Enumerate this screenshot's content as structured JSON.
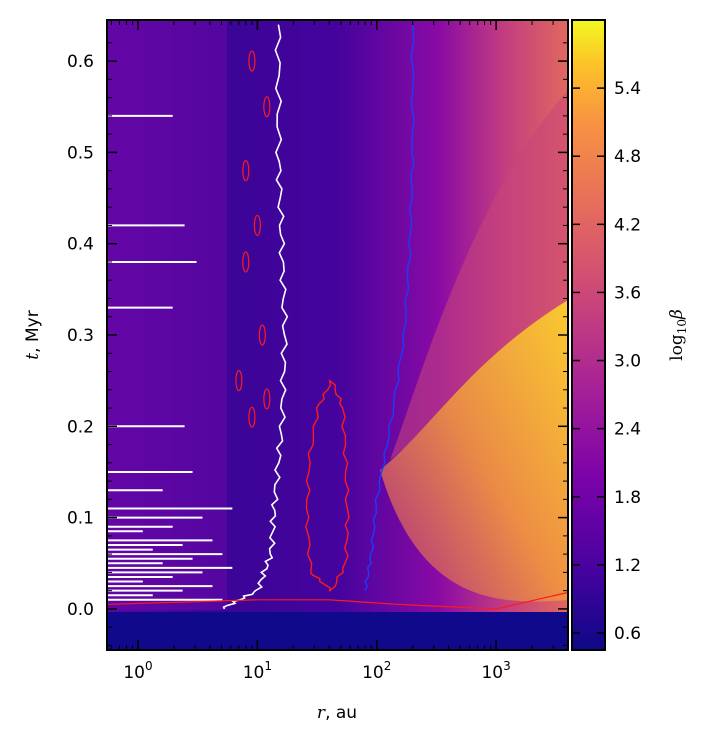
{
  "chart_data": {
    "type": "heatmap",
    "title": "",
    "xlabel_var": "r",
    "xlabel_unit": ", au",
    "ylabel_var": "t",
    "ylabel_unit": ", Myr",
    "x_scale": "log",
    "xlim": [
      0.55,
      4000
    ],
    "ylim": [
      -0.045,
      0.645
    ],
    "x_ticks": [
      {
        "value": 1,
        "base": "10",
        "exp": "0"
      },
      {
        "value": 10,
        "base": "10",
        "exp": "1"
      },
      {
        "value": 100,
        "base": "10",
        "exp": "2"
      },
      {
        "value": 1000,
        "base": "10",
        "exp": "3"
      }
    ],
    "y_ticks": [
      {
        "value": 0.0,
        "label": "0.0"
      },
      {
        "value": 0.1,
        "label": "0.1"
      },
      {
        "value": 0.2,
        "label": "0.2"
      },
      {
        "value": 0.3,
        "label": "0.3"
      },
      {
        "value": 0.4,
        "label": "0.4"
      },
      {
        "value": 0.5,
        "label": "0.5"
      },
      {
        "value": 0.6,
        "label": "0.6"
      }
    ],
    "colorbar": {
      "label_base": "log",
      "label_sub": "10",
      "label_var": "β",
      "range": [
        0.45,
        6.0
      ],
      "ticks": [
        {
          "value": 0.6,
          "label": "0.6"
        },
        {
          "value": 1.2,
          "label": "1.2"
        },
        {
          "value": 1.8,
          "label": "1.8"
        },
        {
          "value": 2.4,
          "label": "2.4"
        },
        {
          "value": 3.0,
          "label": "3.0"
        },
        {
          "value": 3.6,
          "label": "3.6"
        },
        {
          "value": 4.2,
          "label": "4.2"
        },
        {
          "value": 4.8,
          "label": "4.8"
        },
        {
          "value": 5.4,
          "label": "5.4"
        }
      ],
      "colormap": "plasma"
    },
    "contours": {
      "white_boundary": [
        [
          15,
          0.64
        ],
        [
          15,
          0.5
        ],
        [
          16,
          0.4
        ],
        [
          17,
          0.3
        ],
        [
          16,
          0.2
        ],
        [
          14,
          0.12
        ],
        [
          13,
          0.06
        ],
        [
          10,
          0.02
        ],
        [
          5,
          0.0
        ]
      ],
      "red_lobe": [
        [
          28,
          0.04
        ],
        [
          26,
          0.1
        ],
        [
          27,
          0.16
        ],
        [
          32,
          0.22
        ],
        [
          42,
          0.25
        ],
        [
          52,
          0.22
        ],
        [
          55,
          0.16
        ],
        [
          57,
          0.1
        ],
        [
          55,
          0.05
        ],
        [
          42,
          0.02
        ]
      ],
      "red_outflow": [
        [
          0.55,
          0.005
        ],
        [
          10,
          0.01
        ],
        [
          40,
          0.01
        ],
        [
          150,
          0.005
        ],
        [
          1000,
          0.0
        ],
        [
          4000,
          0.018
        ]
      ],
      "blue_front": [
        [
          200,
          0.64
        ],
        [
          200,
          0.5
        ],
        [
          190,
          0.4
        ],
        [
          170,
          0.3
        ],
        [
          130,
          0.2
        ],
        [
          100,
          0.12
        ],
        [
          90,
          0.06
        ],
        [
          80,
          0.02
        ]
      ]
    },
    "colors": {
      "low": "#0d0887",
      "mid": "#7e03a8",
      "high": "#f0f921",
      "contour_white": "#ffffff",
      "contour_red": "#ff1a1a",
      "contour_blue": "#1a3cff"
    }
  }
}
